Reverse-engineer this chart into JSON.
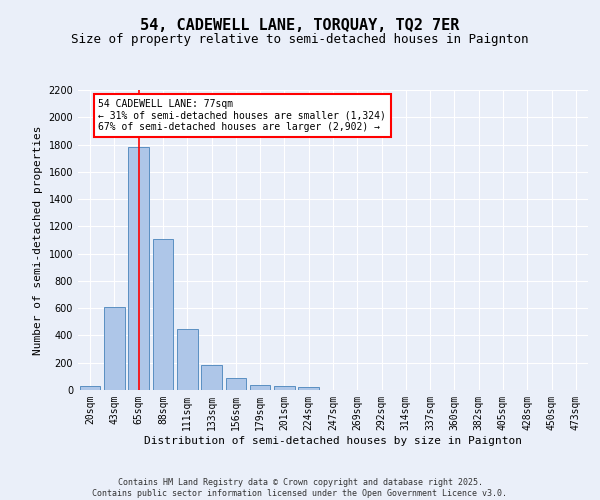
{
  "title": "54, CADEWELL LANE, TORQUAY, TQ2 7ER",
  "subtitle": "Size of property relative to semi-detached houses in Paignton",
  "xlabel": "Distribution of semi-detached houses by size in Paignton",
  "ylabel": "Number of semi-detached properties",
  "bar_labels": [
    "20sqm",
    "43sqm",
    "65sqm",
    "88sqm",
    "111sqm",
    "133sqm",
    "156sqm",
    "179sqm",
    "201sqm",
    "224sqm",
    "247sqm",
    "269sqm",
    "292sqm",
    "314sqm",
    "337sqm",
    "360sqm",
    "382sqm",
    "405sqm",
    "428sqm",
    "450sqm",
    "473sqm"
  ],
  "bar_values": [
    30,
    610,
    1780,
    1110,
    450,
    180,
    90,
    40,
    30,
    20,
    0,
    0,
    0,
    0,
    0,
    0,
    0,
    0,
    0,
    0,
    0
  ],
  "bar_color": "#aec6e8",
  "bar_edge_color": "#5a8fc2",
  "background_color": "#eaeff9",
  "grid_color": "#ffffff",
  "ylim": [
    0,
    2200
  ],
  "yticks": [
    0,
    200,
    400,
    600,
    800,
    1000,
    1200,
    1400,
    1600,
    1800,
    2000,
    2200
  ],
  "property_bin_index": 2,
  "annotation_title": "54 CADEWELL LANE: 77sqm",
  "annotation_line1": "← 31% of semi-detached houses are smaller (1,324)",
  "annotation_line2": "67% of semi-detached houses are larger (2,902) →",
  "footer_line1": "Contains HM Land Registry data © Crown copyright and database right 2025.",
  "footer_line2": "Contains public sector information licensed under the Open Government Licence v3.0.",
  "title_fontsize": 11,
  "subtitle_fontsize": 9,
  "ylabel_fontsize": 8,
  "xlabel_fontsize": 8,
  "tick_fontsize": 7,
  "annotation_fontsize": 7,
  "footer_fontsize": 6
}
